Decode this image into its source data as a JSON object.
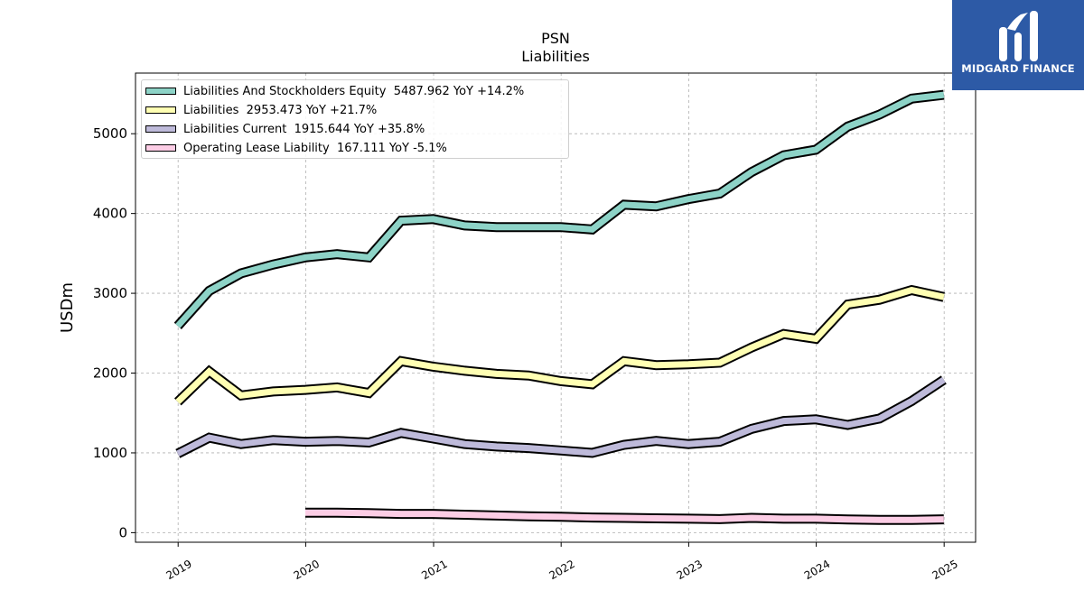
{
  "logo": {
    "text": "MIDGARD FINANCE",
    "bg": "#2d5aa6",
    "icon": "midgard-m-logo-icon"
  },
  "chart_data": {
    "type": "line",
    "title": "PSN",
    "subtitle": "Liabilities",
    "ylabel": "USDm",
    "xlabel": "",
    "xlim": [
      "2018-09-01",
      "2025-04-01"
    ],
    "ylim": [
      -120,
      5760
    ],
    "yticks": [
      0,
      1000,
      2000,
      3000,
      4000,
      5000
    ],
    "xticks": [
      "2019",
      "2020",
      "2021",
      "2022",
      "2023",
      "2024",
      "2025"
    ],
    "grid": true,
    "legend_position": "top-left",
    "series": [
      {
        "name": "Liabilities And Stockholders Equity",
        "legend": "Liabilities And Stockholders Equity  5487.962 YoY +14.2%",
        "color": "#8dd3c7",
        "points": [
          [
            "2018-12-31",
            2590
          ],
          [
            "2019-03-31",
            3030
          ],
          [
            "2019-06-30",
            3250
          ],
          [
            "2019-09-30",
            3360
          ],
          [
            "2019-12-31",
            3450
          ],
          [
            "2020-03-31",
            3490
          ],
          [
            "2020-06-30",
            3450
          ],
          [
            "2020-09-30",
            3910
          ],
          [
            "2020-12-31",
            3930
          ],
          [
            "2021-03-31",
            3850
          ],
          [
            "2021-06-30",
            3830
          ],
          [
            "2021-09-30",
            3830
          ],
          [
            "2021-12-31",
            3830
          ],
          [
            "2022-03-31",
            3800
          ],
          [
            "2022-06-30",
            4110
          ],
          [
            "2022-09-30",
            4090
          ],
          [
            "2022-12-31",
            4180
          ],
          [
            "2023-03-31",
            4250
          ],
          [
            "2023-06-30",
            4520
          ],
          [
            "2023-09-30",
            4730
          ],
          [
            "2023-12-31",
            4800
          ],
          [
            "2024-03-31",
            5090
          ],
          [
            "2024-06-30",
            5240
          ],
          [
            "2024-09-30",
            5440
          ],
          [
            "2024-12-31",
            5488
          ]
        ]
      },
      {
        "name": "Liabilities",
        "legend": "Liabilities  2953.473 YoY +21.7%",
        "color": "#ffffb3",
        "points": [
          [
            "2018-12-31",
            1640
          ],
          [
            "2019-03-31",
            2020
          ],
          [
            "2019-06-30",
            1720
          ],
          [
            "2019-09-30",
            1770
          ],
          [
            "2019-12-31",
            1790
          ],
          [
            "2020-03-31",
            1820
          ],
          [
            "2020-06-30",
            1750
          ],
          [
            "2020-09-30",
            2150
          ],
          [
            "2020-12-31",
            2080
          ],
          [
            "2021-03-31",
            2030
          ],
          [
            "2021-06-30",
            1990
          ],
          [
            "2021-09-30",
            1970
          ],
          [
            "2021-12-31",
            1900
          ],
          [
            "2022-03-31",
            1860
          ],
          [
            "2022-06-30",
            2150
          ],
          [
            "2022-09-30",
            2100
          ],
          [
            "2022-12-31",
            2110
          ],
          [
            "2023-03-31",
            2130
          ],
          [
            "2023-06-30",
            2320
          ],
          [
            "2023-09-30",
            2490
          ],
          [
            "2023-12-31",
            2430
          ],
          [
            "2024-03-31",
            2860
          ],
          [
            "2024-06-30",
            2920
          ],
          [
            "2024-09-30",
            3040
          ],
          [
            "2024-12-31",
            2953
          ]
        ]
      },
      {
        "name": "Liabilities Current",
        "legend": "Liabilities Current  1915.644 YoY +35.8%",
        "color": "#bebada",
        "points": [
          [
            "2018-12-31",
            990
          ],
          [
            "2019-03-31",
            1190
          ],
          [
            "2019-06-30",
            1110
          ],
          [
            "2019-09-30",
            1160
          ],
          [
            "2019-12-31",
            1140
          ],
          [
            "2020-03-31",
            1150
          ],
          [
            "2020-06-30",
            1130
          ],
          [
            "2020-09-30",
            1250
          ],
          [
            "2020-12-31",
            1180
          ],
          [
            "2021-03-31",
            1110
          ],
          [
            "2021-06-30",
            1080
          ],
          [
            "2021-09-30",
            1060
          ],
          [
            "2021-12-31",
            1030
          ],
          [
            "2022-03-31",
            1000
          ],
          [
            "2022-06-30",
            1100
          ],
          [
            "2022-09-30",
            1150
          ],
          [
            "2022-12-31",
            1110
          ],
          [
            "2023-03-31",
            1140
          ],
          [
            "2023-06-30",
            1300
          ],
          [
            "2023-09-30",
            1400
          ],
          [
            "2023-12-31",
            1420
          ],
          [
            "2024-03-31",
            1350
          ],
          [
            "2024-06-30",
            1430
          ],
          [
            "2024-09-30",
            1650
          ],
          [
            "2024-12-31",
            1916
          ]
        ]
      },
      {
        "name": "Operating Lease Liability",
        "legend": "Operating Lease Liability  167.111 YoY -5.1%",
        "color": "#fccde5",
        "points": [
          [
            "2019-12-31",
            250
          ],
          [
            "2020-03-31",
            250
          ],
          [
            "2020-06-30",
            245
          ],
          [
            "2020-09-30",
            235
          ],
          [
            "2020-12-31",
            235
          ],
          [
            "2021-03-31",
            225
          ],
          [
            "2021-06-30",
            215
          ],
          [
            "2021-09-30",
            205
          ],
          [
            "2021-12-31",
            200
          ],
          [
            "2022-03-31",
            190
          ],
          [
            "2022-06-30",
            185
          ],
          [
            "2022-09-30",
            180
          ],
          [
            "2022-12-31",
            175
          ],
          [
            "2023-03-31",
            170
          ],
          [
            "2023-06-30",
            185
          ],
          [
            "2023-09-30",
            175
          ],
          [
            "2023-12-31",
            175
          ],
          [
            "2024-03-31",
            165
          ],
          [
            "2024-06-30",
            160
          ],
          [
            "2024-09-30",
            160
          ],
          [
            "2024-12-31",
            167
          ]
        ]
      }
    ]
  }
}
